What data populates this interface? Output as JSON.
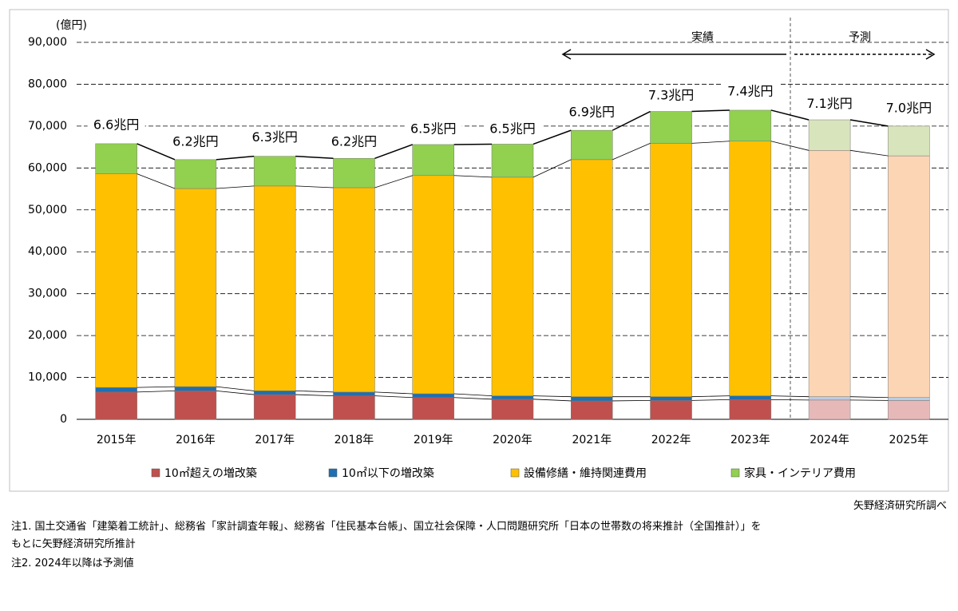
{
  "chart_data": {
    "type": "stacked_bar",
    "y_unit": "(億円)",
    "categories": [
      "2015年",
      "2016年",
      "2017年",
      "2018年",
      "2019年",
      "2020年",
      "2021年",
      "2022年",
      "2023年",
      "2024年",
      "2025年"
    ],
    "series": [
      {
        "name": "10㎡超えの増改築",
        "color": "#c0504d",
        "colors": [
          "#c0504d",
          "#c0504d",
          "#c0504d",
          "#c0504d",
          "#c0504d",
          "#c0504d",
          "#c0504d",
          "#c0504d",
          "#c0504d",
          "#e6b9b8",
          "#e6b9b8"
        ],
        "values": [
          6500,
          6800,
          5900,
          5600,
          5200,
          4800,
          4400,
          4500,
          4700,
          4600,
          4500
        ]
      },
      {
        "name": "10㎡以下の増改築",
        "color": "#1f6fb2",
        "colors": [
          "#1f6fb2",
          "#1f6fb2",
          "#1f6fb2",
          "#1f6fb2",
          "#1f6fb2",
          "#1f6fb2",
          "#1f6fb2",
          "#1f6fb2",
          "#1f6fb2",
          "#b9cde5",
          "#b9cde5"
        ],
        "values": [
          1100,
          1000,
          900,
          900,
          900,
          800,
          1000,
          900,
          900,
          800,
          700
        ]
      },
      {
        "name": "設備修繕・維持関連費用",
        "color": "#ffc000",
        "colors": [
          "#ffc000",
          "#ffc000",
          "#ffc000",
          "#ffc000",
          "#ffc000",
          "#ffc000",
          "#ffc000",
          "#ffc000",
          "#ffc000",
          "#fcd5b4",
          "#fcd5b4"
        ],
        "values": [
          51000,
          47300,
          48900,
          48800,
          52100,
          52200,
          56600,
          60500,
          60800,
          58800,
          57700
        ]
      },
      {
        "name": "家具・インテリア費用",
        "color": "#92d050",
        "colors": [
          "#92d050",
          "#92d050",
          "#92d050",
          "#92d050",
          "#92d050",
          "#92d050",
          "#92d050",
          "#92d050",
          "#92d050",
          "#d8e4bc",
          "#d8e4bc"
        ],
        "values": [
          7200,
          6900,
          7100,
          7000,
          7400,
          7900,
          7000,
          7600,
          7400,
          7300,
          7100
        ]
      }
    ],
    "totals": {
      "values": [
        66000,
        62000,
        63000,
        62000,
        65000,
        65000,
        69000,
        73000,
        74000,
        71000,
        70000
      ],
      "value_labels": [
        "6.6兆円",
        "6.2兆円",
        "6.3兆円",
        "6.2兆円",
        "6.5兆円",
        "6.5兆円",
        "6.9兆円",
        "7.3兆円",
        "7.4兆円",
        "7.1兆円",
        "7.0兆円"
      ]
    },
    "ylim": [
      0,
      90000
    ],
    "yticks": [
      0,
      {
        "value": 10000,
        "label": "10,000"
      },
      {
        "value": 20000,
        "label": "20,000"
      },
      {
        "value": 30000,
        "label": "30,000"
      },
      {
        "value": 40000,
        "label": "40,000"
      },
      {
        "value": 50000,
        "label": "50,000"
      },
      {
        "value": 60000,
        "label": "60,000"
      },
      {
        "value": 70000,
        "label": "70,000"
      },
      {
        "value": 80000,
        "label": "80,000"
      },
      {
        "value": 90000,
        "label": "90,000"
      }
    ],
    "grid": true,
    "annotations": {
      "actual": "実績",
      "forecast": "予測"
    }
  },
  "footer": {
    "source": "矢野経済研究所調べ",
    "note1": [
      "注1.  国土交通省「建築着工統計」、総務省「家計調査年報」、総務省「住民基本台帳」、国立社会保障・人口問題研究所「日本の世帯数の将来推計（全国推計）」を",
      "もとに矢野経済研究所推計"
    ],
    "note2": "注2.  2024年以降は予測値"
  }
}
